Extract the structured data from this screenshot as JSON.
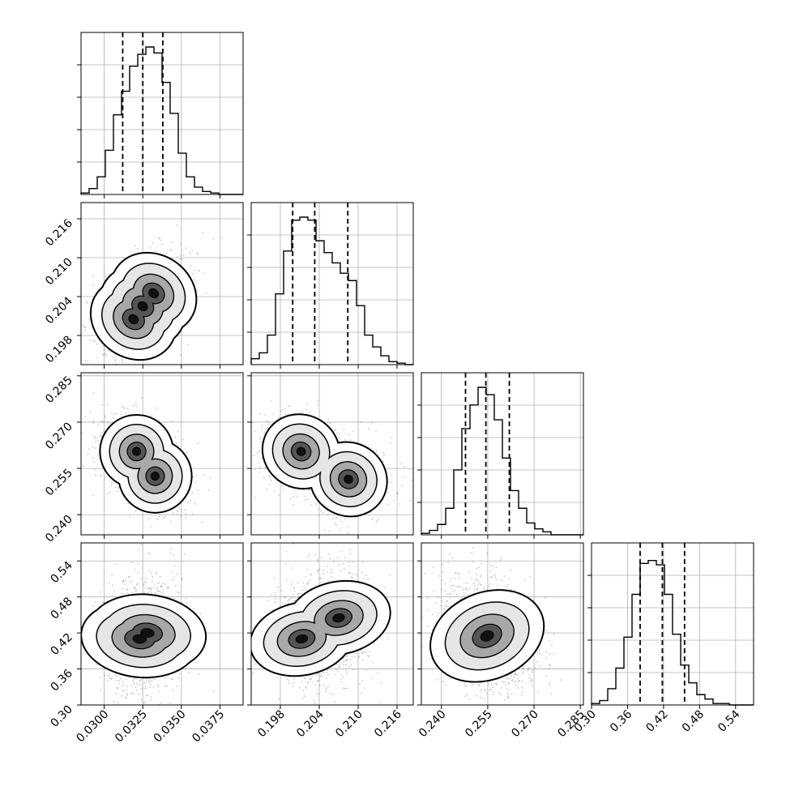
{
  "chart_data": {
    "type": "corner",
    "grid": true,
    "parameters": [
      {
        "range": [
          0.0285,
          0.039
        ],
        "ticks": [
          0.03,
          0.0325,
          0.035,
          0.0375
        ],
        "tick_labels": [
          "0.0300",
          "0.0325",
          "0.0350",
          "0.0375"
        ],
        "quantiles": [
          0.0312,
          0.0325,
          0.0338
        ],
        "hist": [
          0.01,
          0.04,
          0.12,
          0.3,
          0.54,
          0.7,
          0.87,
          0.95,
          1.0,
          0.96,
          0.76,
          0.55,
          0.28,
          0.12,
          0.05,
          0.02,
          0.01,
          0.0,
          0.0,
          0.0
        ]
      },
      {
        "range": [
          0.1935,
          0.2185
        ],
        "ticks": [
          0.198,
          0.204,
          0.21,
          0.216
        ],
        "tick_labels": [
          "0.198",
          "0.204",
          "0.210",
          "0.216"
        ],
        "quantiles": [
          0.1999,
          0.2033,
          0.2084
        ],
        "hist": [
          0.04,
          0.08,
          0.2,
          0.48,
          0.77,
          0.98,
          1.0,
          0.98,
          0.84,
          0.76,
          0.69,
          0.62,
          0.57,
          0.4,
          0.2,
          0.12,
          0.06,
          0.02,
          0.01,
          0.0
        ]
      },
      {
        "range": [
          0.2335,
          0.286
        ],
        "ticks": [
          0.24,
          0.255,
          0.27,
          0.285
        ],
        "tick_labels": [
          "0.240",
          "0.255",
          "0.270",
          "0.285"
        ],
        "quantiles": [
          0.2478,
          0.2544,
          0.262
        ],
        "hist": [
          0.01,
          0.03,
          0.07,
          0.18,
          0.44,
          0.72,
          0.88,
          1.0,
          0.95,
          0.78,
          0.52,
          0.3,
          0.18,
          0.08,
          0.04,
          0.02,
          0.0,
          0.0,
          0.0,
          0.0
        ]
      },
      {
        "range": [
          0.3,
          0.57
        ],
        "ticks": [
          0.3,
          0.36,
          0.42,
          0.48,
          0.54
        ],
        "tick_labels": [
          "0.30",
          "0.36",
          "0.42",
          "0.48",
          "0.54"
        ],
        "quantiles": [
          0.381,
          0.418,
          0.455
        ],
        "hist": [
          0.01,
          0.03,
          0.11,
          0.25,
          0.46,
          0.75,
          0.96,
          0.98,
          0.95,
          0.75,
          0.48,
          0.27,
          0.15,
          0.07,
          0.04,
          0.01,
          0.01,
          0.0,
          0.0,
          0.0
        ]
      }
    ],
    "pairs": [
      {
        "x": 0,
        "y": 1,
        "centers": [
          [
            0.0319,
            0.2005
          ],
          [
            0.0325,
            0.2025
          ],
          [
            0.0332,
            0.2045
          ]
        ],
        "sx": 0.00115,
        "sy": 0.0032,
        "rho": 0.45
      },
      {
        "x": 0,
        "y": 2,
        "centers": [
          [
            0.0321,
            0.2605
          ],
          [
            0.0333,
            0.2525
          ]
        ],
        "sx": 0.0011,
        "sy": 0.0055,
        "rho": -0.25
      },
      {
        "x": 1,
        "y": 2,
        "centers": [
          [
            0.2012,
            0.2605
          ],
          [
            0.2085,
            0.2515
          ]
        ],
        "sx": 0.0028,
        "sy": 0.0055,
        "rho": -0.1
      },
      {
        "x": 0,
        "y": 3,
        "centers": [
          [
            0.0323,
            0.41
          ],
          [
            0.0328,
            0.42
          ]
        ],
        "sx": 0.00115,
        "sy": 0.045,
        "rho": 0.1
      },
      {
        "x": 1,
        "y": 3,
        "centers": [
          [
            0.2013,
            0.41
          ],
          [
            0.207,
            0.445
          ]
        ],
        "sx": 0.0026,
        "sy": 0.04,
        "rho": -0.15
      },
      {
        "x": 2,
        "y": 3,
        "centers": [
          [
            0.2548,
            0.415
          ]
        ],
        "sx": 0.0065,
        "sy": 0.045,
        "rho": -0.3
      }
    ]
  }
}
